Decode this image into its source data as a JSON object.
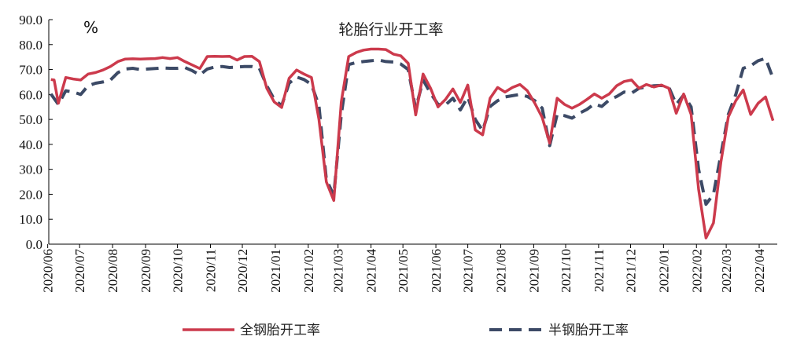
{
  "chart_data": {
    "type": "line",
    "title": "轮胎行业开工率",
    "unit": "%",
    "ylim": [
      0,
      90
    ],
    "yticks": [
      "0.0",
      "10.0",
      "20.0",
      "30.0",
      "40.0",
      "50.0",
      "60.0",
      "70.0",
      "80.0",
      "90.0"
    ],
    "x_tick_labels": [
      "2020/06",
      "2020/07",
      "2020/08",
      "2020/09",
      "2020/10",
      "2020/11",
      "2020/12",
      "2021/01",
      "2021/02",
      "2021/03",
      "2021/04",
      "2021/05",
      "2021/06",
      "2021/07",
      "2021/08",
      "2021/09",
      "2021/10",
      "2021/11",
      "2021/12",
      "2022/01",
      "2022/02",
      "2022/03",
      "2022/04"
    ],
    "grid": false,
    "legend_position": "bottom",
    "series": [
      {
        "name": "全钢胎开工率",
        "color": "#cc3a4c",
        "style": "solid",
        "points": [
          [
            "2020-06-04",
            66.0
          ],
          [
            "2020-06-07",
            65.8
          ],
          [
            "2020-06-11",
            56.5
          ],
          [
            "2020-06-18",
            66.8
          ],
          [
            "2020-06-25",
            66.2
          ],
          [
            "2020-07-02",
            65.8
          ],
          [
            "2020-07-09",
            68.2
          ],
          [
            "2020-07-16",
            68.8
          ],
          [
            "2020-07-23",
            69.8
          ],
          [
            "2020-07-30",
            71.2
          ],
          [
            "2020-08-06",
            73.2
          ],
          [
            "2020-08-13",
            74.2
          ],
          [
            "2020-08-20",
            74.3
          ],
          [
            "2020-08-27",
            74.2
          ],
          [
            "2020-09-03",
            74.3
          ],
          [
            "2020-09-10",
            74.4
          ],
          [
            "2020-09-17",
            74.8
          ],
          [
            "2020-09-24",
            74.4
          ],
          [
            "2020-10-01",
            74.8
          ],
          [
            "2020-10-08",
            73.2
          ],
          [
            "2020-10-15",
            71.8
          ],
          [
            "2020-10-22",
            70.4
          ],
          [
            "2020-10-29",
            75.2
          ],
          [
            "2020-11-05",
            75.3
          ],
          [
            "2020-11-12",
            75.2
          ],
          [
            "2020-11-19",
            75.3
          ],
          [
            "2020-11-26",
            73.8
          ],
          [
            "2020-12-03",
            75.2
          ],
          [
            "2020-12-10",
            75.3
          ],
          [
            "2020-12-17",
            73.2
          ],
          [
            "2020-12-24",
            62.5
          ],
          [
            "2020-12-31",
            57.0
          ],
          [
            "2021-01-07",
            54.8
          ],
          [
            "2021-01-14",
            66.5
          ],
          [
            "2021-01-21",
            69.8
          ],
          [
            "2021-01-28",
            68.2
          ],
          [
            "2021-02-04",
            66.8
          ],
          [
            "2021-02-11",
            50.0
          ],
          [
            "2021-02-18",
            25.0
          ],
          [
            "2021-02-25",
            17.5
          ],
          [
            "2021-03-04",
            57.0
          ],
          [
            "2021-03-11",
            75.2
          ],
          [
            "2021-03-18",
            76.8
          ],
          [
            "2021-03-25",
            77.8
          ],
          [
            "2021-04-01",
            78.2
          ],
          [
            "2021-04-08",
            78.2
          ],
          [
            "2021-04-15",
            78.0
          ],
          [
            "2021-04-22",
            76.2
          ],
          [
            "2021-04-29",
            75.5
          ],
          [
            "2021-05-06",
            72.5
          ],
          [
            "2021-05-13",
            51.8
          ],
          [
            "2021-05-20",
            68.2
          ],
          [
            "2021-05-27",
            62.5
          ],
          [
            "2021-06-03",
            55.0
          ],
          [
            "2021-06-10",
            58.0
          ],
          [
            "2021-06-17",
            62.2
          ],
          [
            "2021-06-24",
            56.8
          ],
          [
            "2021-07-01",
            63.8
          ],
          [
            "2021-07-08",
            45.8
          ],
          [
            "2021-07-15",
            43.8
          ],
          [
            "2021-07-22",
            58.5
          ],
          [
            "2021-07-29",
            62.8
          ],
          [
            "2021-08-05",
            61.0
          ],
          [
            "2021-08-12",
            62.8
          ],
          [
            "2021-08-19",
            64.0
          ],
          [
            "2021-08-26",
            61.5
          ],
          [
            "2021-09-02",
            56.5
          ],
          [
            "2021-09-09",
            50.8
          ],
          [
            "2021-09-16",
            40.5
          ],
          [
            "2021-09-23",
            58.5
          ],
          [
            "2021-09-30",
            56.0
          ],
          [
            "2021-10-07",
            54.5
          ],
          [
            "2021-10-14",
            56.0
          ],
          [
            "2021-10-21",
            58.0
          ],
          [
            "2021-10-28",
            60.2
          ],
          [
            "2021-11-04",
            58.5
          ],
          [
            "2021-11-11",
            60.2
          ],
          [
            "2021-11-18",
            63.5
          ],
          [
            "2021-11-25",
            65.2
          ],
          [
            "2021-12-02",
            65.8
          ],
          [
            "2021-12-09",
            62.5
          ],
          [
            "2021-12-16",
            64.0
          ],
          [
            "2021-12-23",
            63.0
          ],
          [
            "2021-12-30",
            63.8
          ],
          [
            "2022-01-06",
            62.5
          ],
          [
            "2022-01-13",
            52.5
          ],
          [
            "2022-01-20",
            60.2
          ],
          [
            "2022-01-27",
            52.0
          ],
          [
            "2022-02-03",
            22.0
          ],
          [
            "2022-02-10",
            2.5
          ],
          [
            "2022-02-17",
            8.5
          ],
          [
            "2022-02-24",
            33.0
          ],
          [
            "2022-03-03",
            51.0
          ],
          [
            "2022-03-10",
            57.5
          ],
          [
            "2022-03-17",
            61.8
          ],
          [
            "2022-03-24",
            52.0
          ],
          [
            "2022-03-31",
            56.5
          ],
          [
            "2022-04-07",
            59.0
          ],
          [
            "2022-04-14",
            49.5
          ]
        ]
      },
      {
        "name": "半钢胎开工率",
        "color": "#3c4a66",
        "style": "dashed",
        "points": [
          [
            "2020-06-04",
            60.2
          ],
          [
            "2020-06-11",
            56.0
          ],
          [
            "2020-06-18",
            61.5
          ],
          [
            "2020-06-25",
            61.0
          ],
          [
            "2020-07-02",
            60.0
          ],
          [
            "2020-07-09",
            63.5
          ],
          [
            "2020-07-16",
            64.5
          ],
          [
            "2020-07-23",
            65.0
          ],
          [
            "2020-07-30",
            65.8
          ],
          [
            "2020-08-06",
            68.8
          ],
          [
            "2020-08-13",
            70.2
          ],
          [
            "2020-08-20",
            70.5
          ],
          [
            "2020-08-27",
            70.0
          ],
          [
            "2020-09-03",
            70.2
          ],
          [
            "2020-09-10",
            70.4
          ],
          [
            "2020-09-17",
            70.6
          ],
          [
            "2020-09-24",
            70.5
          ],
          [
            "2020-10-01",
            70.5
          ],
          [
            "2020-10-08",
            70.8
          ],
          [
            "2020-10-15",
            69.5
          ],
          [
            "2020-10-22",
            67.8
          ],
          [
            "2020-10-29",
            70.2
          ],
          [
            "2020-11-05",
            71.0
          ],
          [
            "2020-11-12",
            71.2
          ],
          [
            "2020-11-19",
            70.8
          ],
          [
            "2020-11-26",
            71.0
          ],
          [
            "2020-12-03",
            71.2
          ],
          [
            "2020-12-10",
            71.2
          ],
          [
            "2020-12-17",
            70.5
          ],
          [
            "2020-12-24",
            63.5
          ],
          [
            "2020-12-31",
            58.0
          ],
          [
            "2021-01-07",
            55.5
          ],
          [
            "2021-01-14",
            64.5
          ],
          [
            "2021-01-21",
            67.0
          ],
          [
            "2021-01-28",
            66.0
          ],
          [
            "2021-02-04",
            64.0
          ],
          [
            "2021-02-11",
            55.5
          ],
          [
            "2021-02-18",
            26.0
          ],
          [
            "2021-02-25",
            19.5
          ],
          [
            "2021-03-04",
            52.0
          ],
          [
            "2021-03-11",
            72.0
          ],
          [
            "2021-03-18",
            72.8
          ],
          [
            "2021-03-25",
            73.2
          ],
          [
            "2021-04-01",
            73.5
          ],
          [
            "2021-04-08",
            73.8
          ],
          [
            "2021-04-15",
            73.2
          ],
          [
            "2021-04-22",
            73.0
          ],
          [
            "2021-04-29",
            72.2
          ],
          [
            "2021-05-06",
            70.0
          ],
          [
            "2021-05-13",
            54.2
          ],
          [
            "2021-05-20",
            65.8
          ],
          [
            "2021-05-27",
            60.5
          ],
          [
            "2021-06-03",
            56.0
          ],
          [
            "2021-06-10",
            55.8
          ],
          [
            "2021-06-17",
            58.5
          ],
          [
            "2021-06-24",
            53.8
          ],
          [
            "2021-07-01",
            59.0
          ],
          [
            "2021-07-08",
            50.0
          ],
          [
            "2021-07-15",
            45.5
          ],
          [
            "2021-07-22",
            55.2
          ],
          [
            "2021-07-29",
            57.5
          ],
          [
            "2021-08-05",
            59.0
          ],
          [
            "2021-08-12",
            59.5
          ],
          [
            "2021-08-19",
            60.0
          ],
          [
            "2021-08-26",
            59.2
          ],
          [
            "2021-09-02",
            57.5
          ],
          [
            "2021-09-09",
            54.5
          ],
          [
            "2021-09-16",
            39.5
          ],
          [
            "2021-09-23",
            52.0
          ],
          [
            "2021-09-30",
            51.5
          ],
          [
            "2021-10-07",
            50.5
          ],
          [
            "2021-10-14",
            52.5
          ],
          [
            "2021-10-21",
            54.0
          ],
          [
            "2021-10-28",
            56.2
          ],
          [
            "2021-11-04",
            55.2
          ],
          [
            "2021-11-11",
            57.8
          ],
          [
            "2021-11-18",
            59.2
          ],
          [
            "2021-11-25",
            61.0
          ],
          [
            "2021-12-02",
            60.5
          ],
          [
            "2021-12-09",
            62.5
          ],
          [
            "2021-12-16",
            63.0
          ],
          [
            "2021-12-23",
            63.5
          ],
          [
            "2021-12-30",
            63.6
          ],
          [
            "2022-01-06",
            63.0
          ],
          [
            "2022-01-13",
            56.0
          ],
          [
            "2022-01-20",
            59.8
          ],
          [
            "2022-01-27",
            55.0
          ],
          [
            "2022-02-03",
            30.0
          ],
          [
            "2022-02-10",
            16.0
          ],
          [
            "2022-02-17",
            20.0
          ],
          [
            "2022-02-24",
            36.0
          ],
          [
            "2022-03-03",
            52.0
          ],
          [
            "2022-03-10",
            60.0
          ],
          [
            "2022-03-17",
            70.5
          ],
          [
            "2022-03-24",
            71.5
          ],
          [
            "2022-03-31",
            73.5
          ],
          [
            "2022-04-07",
            74.5
          ],
          [
            "2022-04-14",
            66.5
          ]
        ]
      }
    ]
  }
}
